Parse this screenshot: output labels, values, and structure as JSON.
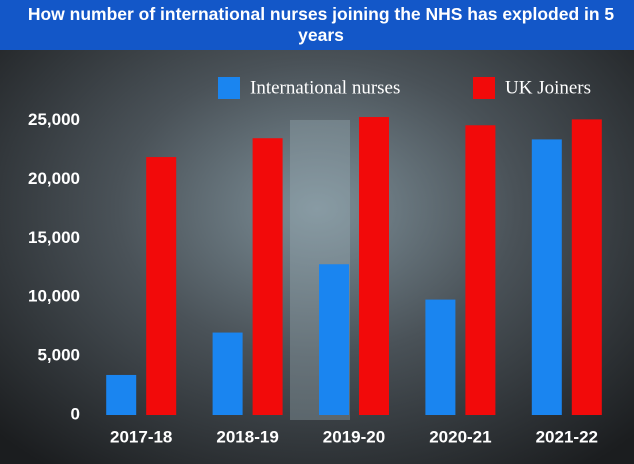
{
  "chart_data": {
    "type": "bar",
    "title": "How number of international nurses joining the NHS has exploded in 5 years",
    "categories": [
      "2017-18",
      "2018-19",
      "2019-20",
      "2020-21",
      "2021-22"
    ],
    "series": [
      {
        "name": "International nurses",
        "color": "#1a85f0",
        "values": [
          3400,
          7000,
          12800,
          9800,
          23400
        ]
      },
      {
        "name": "UK Joiners",
        "color": "#f20a0a",
        "values": [
          21900,
          23500,
          25300,
          24600,
          25100
        ]
      }
    ],
    "ylim": [
      0,
      27000
    ],
    "yticks": [
      0,
      {
        "value": 5000,
        "label": "5,000"
      },
      {
        "value": 10000,
        "label": "10,000"
      },
      {
        "value": 15000,
        "label": "15,000"
      },
      {
        "value": 20000,
        "label": "20,000"
      },
      {
        "value": 25000,
        "label": "25,000"
      }
    ],
    "grid": false
  }
}
